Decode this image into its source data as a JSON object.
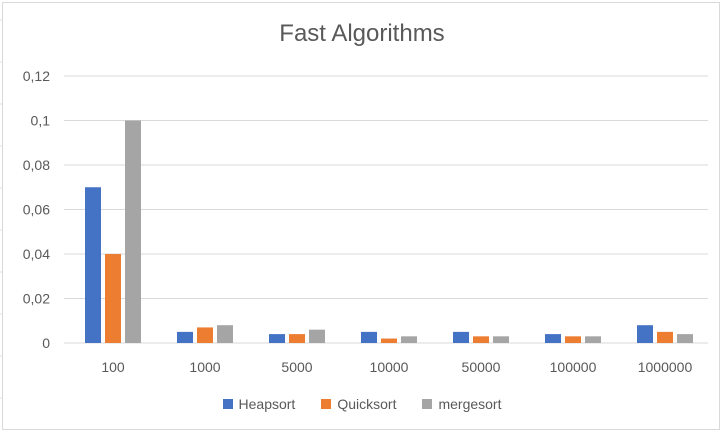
{
  "chart_data": {
    "type": "bar",
    "title": "Fast Algorithms",
    "categories": [
      "100",
      "1000",
      "5000",
      "10000",
      "50000",
      "100000",
      "1000000"
    ],
    "series": [
      {
        "name": "Heapsort",
        "color": "#4472c4",
        "values": [
          0.07,
          0.005,
          0.004,
          0.005,
          0.005,
          0.004,
          0.008
        ]
      },
      {
        "name": "Quicksort",
        "color": "#ed7d31",
        "values": [
          0.04,
          0.007,
          0.004,
          0.002,
          0.003,
          0.003,
          0.005
        ]
      },
      {
        "name": "mergesort",
        "color": "#a5a5a5",
        "values": [
          0.1,
          0.008,
          0.006,
          0.003,
          0.003,
          0.003,
          0.004
        ]
      }
    ],
    "ylim": [
      0,
      0.12
    ],
    "yticks": [
      "0",
      "0,02",
      "0,04",
      "0,06",
      "0,08",
      "0,1",
      "0,12"
    ],
    "grid": true,
    "legend": "bottom",
    "xlabel": "",
    "ylabel": ""
  }
}
